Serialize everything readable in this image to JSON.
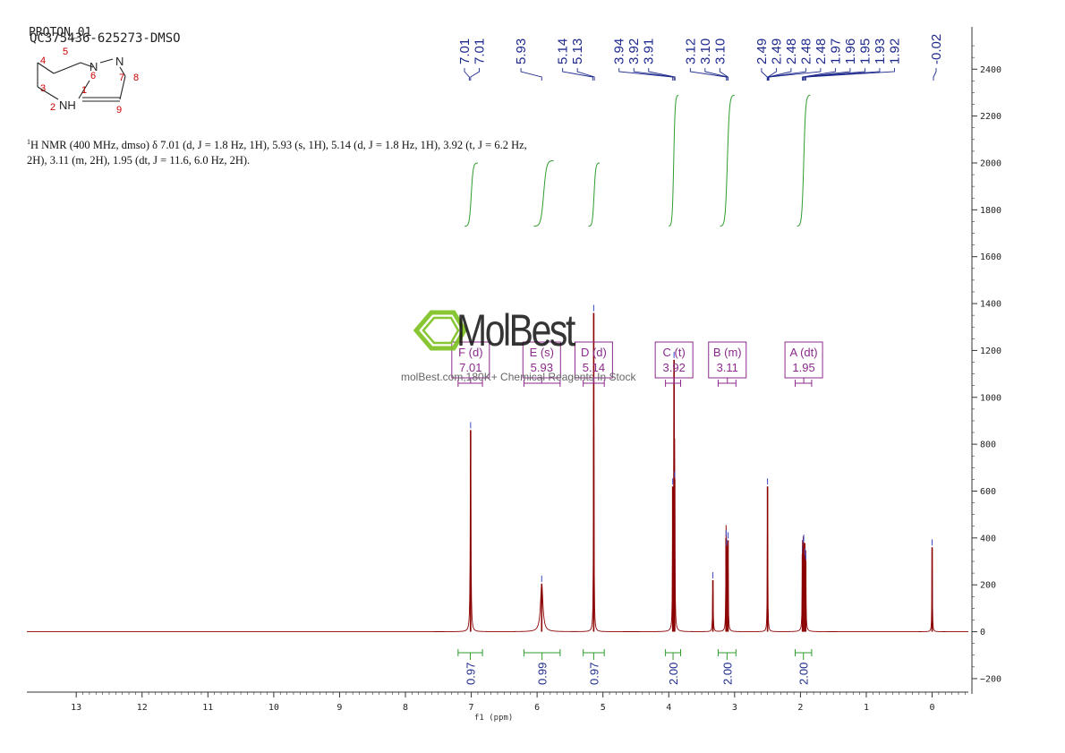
{
  "header": {
    "experiment": "PROTON_01",
    "compound": "QC375436-625273-DMSO"
  },
  "structure": {
    "atoms": [
      {
        "atom_id": "N7",
        "label": "N"
      },
      {
        "atom_id": "N6",
        "label": "N"
      },
      {
        "atom_id": "NH2",
        "label": "NH"
      },
      {
        "atom_id": "C8",
        "label": ""
      },
      {
        "atom_id": "C9",
        "label": ""
      }
    ],
    "atom_numbers": [
      "1",
      "2",
      "3",
      "4",
      "5",
      "6",
      "7",
      "8",
      "9"
    ]
  },
  "description": {
    "nucleus_sup": "1",
    "text": "H NMR (400 MHz, dmso) δ 7.01 (d, J = 1.8 Hz, 1H), 5.93 (s, 1H), 5.14 (d, J = 1.8 Hz, 1H), 3.92 (t, J = 6.2 Hz, 2H), 3.11 (m, 2H), 1.95 (dt, J = 11.6, 6.0 Hz, 2H)."
  },
  "watermark": {
    "brand": "MolBest",
    "tagline": "molBest.com,180K+ Chemical Reagents In Stock"
  },
  "colors": {
    "spectrum": "#8b0000",
    "peak_label": "#1f2a8c",
    "integral": "#2e9d2e",
    "multiplet": "#8b2a8b",
    "watermark_green": "#7cc01f",
    "axis": "#333333"
  },
  "chart_data": {
    "type": "line",
    "xlabel": "f1 (ppm)",
    "x_ticks": [
      "13",
      "12",
      "11",
      "10",
      "9",
      "8",
      "7",
      "6",
      "5",
      "4",
      "3",
      "2",
      "1",
      "0"
    ],
    "xlim": [
      13.75,
      -0.55
    ],
    "y_ticks": [
      "-200",
      "0",
      "200",
      "400",
      "600",
      "800",
      "1000",
      "1200",
      "1400",
      "1600",
      "1800",
      "2000",
      "2200",
      "2400"
    ],
    "ylim": [
      -250,
      2550
    ],
    "peaks_ppm": [
      {
        "ppm": 7.01,
        "height": 860,
        "width": 0.006
      },
      {
        "ppm": 5.93,
        "height": 205,
        "width": 0.022
      },
      {
        "ppm": 5.14,
        "height": 1360,
        "width": 0.004
      },
      {
        "ppm": 3.94,
        "height": 620,
        "width": 0.004
      },
      {
        "ppm": 3.92,
        "height": 1160,
        "width": 0.004
      },
      {
        "ppm": 3.91,
        "height": 650,
        "width": 0.004
      },
      {
        "ppm": 3.33,
        "height": 220,
        "width": 0.005
      },
      {
        "ppm": 3.13,
        "height": 400,
        "width": 0.004
      },
      {
        "ppm": 3.12,
        "height": 360,
        "width": 0.004
      },
      {
        "ppm": 3.1,
        "height": 390,
        "width": 0.004
      },
      {
        "ppm": 2.5,
        "height": 620,
        "width": 0.004
      },
      {
        "ppm": 1.97,
        "height": 330,
        "width": 0.004
      },
      {
        "ppm": 1.96,
        "height": 360,
        "width": 0.004
      },
      {
        "ppm": 1.95,
        "height": 380,
        "width": 0.004
      },
      {
        "ppm": 1.93,
        "height": 320,
        "width": 0.004
      },
      {
        "ppm": 1.92,
        "height": 300,
        "width": 0.004
      },
      {
        "ppm": 0.0,
        "height": 360,
        "width": 0.004
      }
    ],
    "peak_labels": [
      {
        "text": "7.01",
        "ppm": 7.03,
        "group": 1
      },
      {
        "text": "7.01",
        "ppm": 7.01,
        "group": 1
      },
      {
        "text": "5.93",
        "ppm": 5.93,
        "group": 2
      },
      {
        "text": "5.14",
        "ppm": 5.155,
        "group": 3
      },
      {
        "text": "5.13",
        "ppm": 5.13,
        "group": 3
      },
      {
        "text": "3.94",
        "ppm": 3.94,
        "group": 4
      },
      {
        "text": "3.92",
        "ppm": 3.92,
        "group": 4
      },
      {
        "text": "3.91",
        "ppm": 3.905,
        "group": 4
      },
      {
        "text": "3.12",
        "ppm": 3.125,
        "group": 5
      },
      {
        "text": "3.10",
        "ppm": 3.105,
        "group": 5
      },
      {
        "text": "3.10",
        "ppm": 3.1,
        "group": 5
      },
      {
        "text": "2.49",
        "ppm": 2.505,
        "group": 6
      },
      {
        "text": "2.49",
        "ppm": 2.495,
        "group": 6
      },
      {
        "text": "2.48",
        "ppm": 2.49,
        "group": 6
      },
      {
        "text": "2.48",
        "ppm": 2.485,
        "group": 6
      },
      {
        "text": "2.48",
        "ppm": 2.48,
        "group": 6
      },
      {
        "text": "1.97",
        "ppm": 1.97,
        "group": 6
      },
      {
        "text": "1.96",
        "ppm": 1.96,
        "group": 6
      },
      {
        "text": "1.95",
        "ppm": 1.95,
        "group": 6
      },
      {
        "text": "1.93",
        "ppm": 1.93,
        "group": 6
      },
      {
        "text": "1.92",
        "ppm": 1.92,
        "group": 6
      },
      {
        "text": "-0.02",
        "ppm": -0.02,
        "group": 7
      }
    ],
    "integral_curves": [
      {
        "from": 7.1,
        "to": 6.9,
        "y_start": 1730,
        "y_end": 2000
      },
      {
        "from": 6.05,
        "to": 5.75,
        "y_start": 1730,
        "y_end": 2010
      },
      {
        "from": 5.22,
        "to": 5.05,
        "y_start": 1730,
        "y_end": 2000
      },
      {
        "from": 4.0,
        "to": 3.85,
        "y_start": 1730,
        "y_end": 2290
      },
      {
        "from": 3.22,
        "to": 3.0,
        "y_start": 1730,
        "y_end": 2290
      },
      {
        "from": 2.05,
        "to": 1.85,
        "y_start": 1730,
        "y_end": 2290
      }
    ],
    "integrals": [
      {
        "value": "0.97",
        "from": 7.2,
        "to": 6.83
      },
      {
        "value": "0.99",
        "from": 6.2,
        "to": 5.65
      },
      {
        "value": "0.97",
        "from": 5.3,
        "to": 4.98
      },
      {
        "value": "2.00",
        "from": 4.05,
        "to": 3.82
      },
      {
        "value": "2.00",
        "from": 3.25,
        "to": 2.98
      },
      {
        "value": "2.00",
        "from": 2.08,
        "to": 1.83
      }
    ],
    "multiplets": [
      {
        "letter": "F (d)",
        "shift": "7.01",
        "ppm": 7.01,
        "from": 7.2,
        "to": 6.83
      },
      {
        "letter": "E (s)",
        "shift": "5.93",
        "ppm": 5.93,
        "from": 6.2,
        "to": 5.65
      },
      {
        "letter": "D (d)",
        "shift": "5.14",
        "ppm": 5.14,
        "from": 5.3,
        "to": 4.98
      },
      {
        "letter": "C (t)",
        "shift": "3.92",
        "ppm": 3.92,
        "from": 4.05,
        "to": 3.82
      },
      {
        "letter": "B (m)",
        "shift": "3.11",
        "ppm": 3.11,
        "from": 3.25,
        "to": 2.98
      },
      {
        "letter": "A (dt)",
        "shift": "1.95",
        "ppm": 1.95,
        "from": 2.08,
        "to": 1.83
      }
    ]
  }
}
